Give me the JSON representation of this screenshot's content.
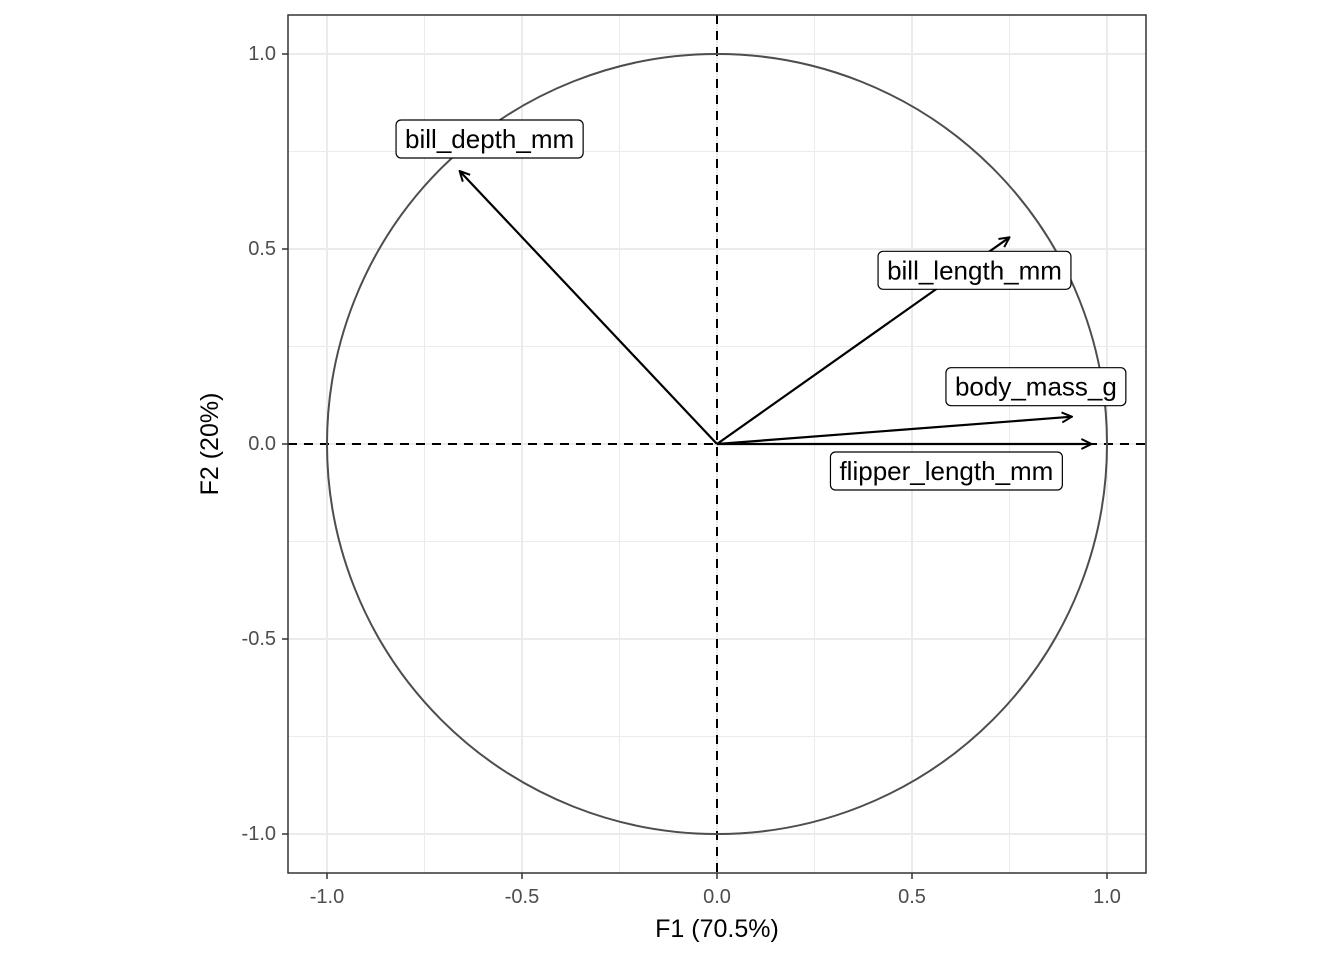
{
  "chart_data": {
    "type": "scatter",
    "xlabel": "F1 (70.5%)",
    "ylabel": "F2 (20%)",
    "xlim": [
      -1.1,
      1.1
    ],
    "ylim": [
      -1.1,
      1.1
    ],
    "x_ticks": [
      -1.0,
      -0.5,
      0.0,
      0.5,
      1.0
    ],
    "y_ticks": [
      -1.0,
      -0.5,
      0.0,
      0.5,
      1.0
    ],
    "x_tick_labels": [
      "-1.0",
      "-0.5",
      "0.0",
      "0.5",
      "1.0"
    ],
    "y_tick_labels": [
      "-1.0",
      "-0.5",
      "0.0",
      "0.5",
      "1.0"
    ],
    "grid": true,
    "correlation_circle_radius": 1.0,
    "reference_lines": {
      "x": 0.0,
      "y": 0.0,
      "style": "dashed"
    },
    "vectors": [
      {
        "name": "bill_depth_mm",
        "x": -0.66,
        "y": 0.7
      },
      {
        "name": "bill_length_mm",
        "x": 0.75,
        "y": 0.53
      },
      {
        "name": "body_mass_g",
        "x": 0.91,
        "y": 0.07
      },
      {
        "name": "flipper_length_mm",
        "x": 0.96,
        "y": 0.0
      }
    ],
    "colors": {
      "grid": "#ebebeb",
      "circle": "#4d4d4d",
      "arrow": "#000000",
      "panel_border": "#333333"
    }
  }
}
